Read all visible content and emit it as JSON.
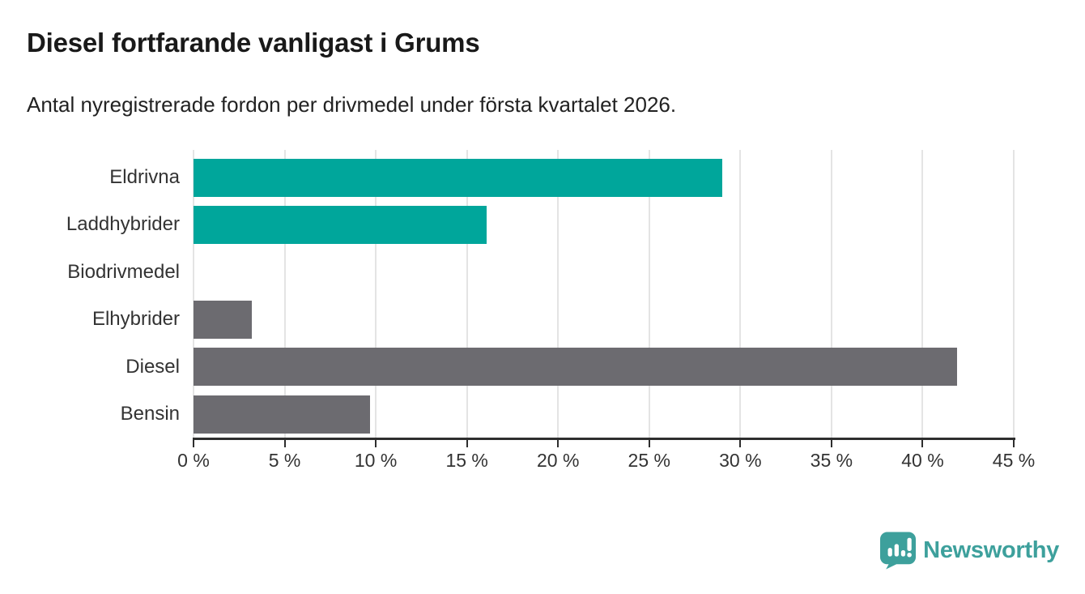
{
  "title": "Diesel fortfarande vanligast i Grums",
  "subtitle": "Antal nyregistrerade fordon per drivmedel under första kvartalet 2026.",
  "logo": {
    "brand": "Newsworthy",
    "icon": "newsworthy-badge-barchart-icon"
  },
  "colors": {
    "accent_teal": "#00a69b",
    "bar_gray": "#6c6b70",
    "axis": "#2e2e2e",
    "gridline": "#e4e4e4",
    "title_text": "#191919",
    "subtitle_text": "#222222",
    "label_text": "#333333",
    "logo_teal": "#3da09c"
  },
  "chart_data": {
    "type": "bar",
    "orientation": "horizontal",
    "title": "Diesel fortfarande vanligast i Grums",
    "subtitle": "Antal nyregistrerade fordon per drivmedel under första kvartalet 2026.",
    "categories": [
      "Eldrivna",
      "Laddhybrider",
      "Biodrivmedel",
      "Elhybrider",
      "Diesel",
      "Bensin"
    ],
    "values": [
      29,
      16.1,
      0,
      3.2,
      41.9,
      9.7
    ],
    "unit": "%",
    "bar_colors": [
      "#00a69b",
      "#00a69b",
      "#6c6b70",
      "#6c6b70",
      "#6c6b70",
      "#6c6b70"
    ],
    "xlabel": "",
    "ylabel": "",
    "xlim": [
      0,
      45
    ],
    "x_ticks": [
      0,
      5,
      10,
      15,
      20,
      25,
      30,
      35,
      40,
      45
    ],
    "x_tick_labels": [
      "0 %",
      "5 %",
      "10 %",
      "15 %",
      "20 %",
      "25 %",
      "30 %",
      "35 %",
      "40 %",
      "45 %"
    ],
    "grid": "vertical-only",
    "legend": "none"
  }
}
